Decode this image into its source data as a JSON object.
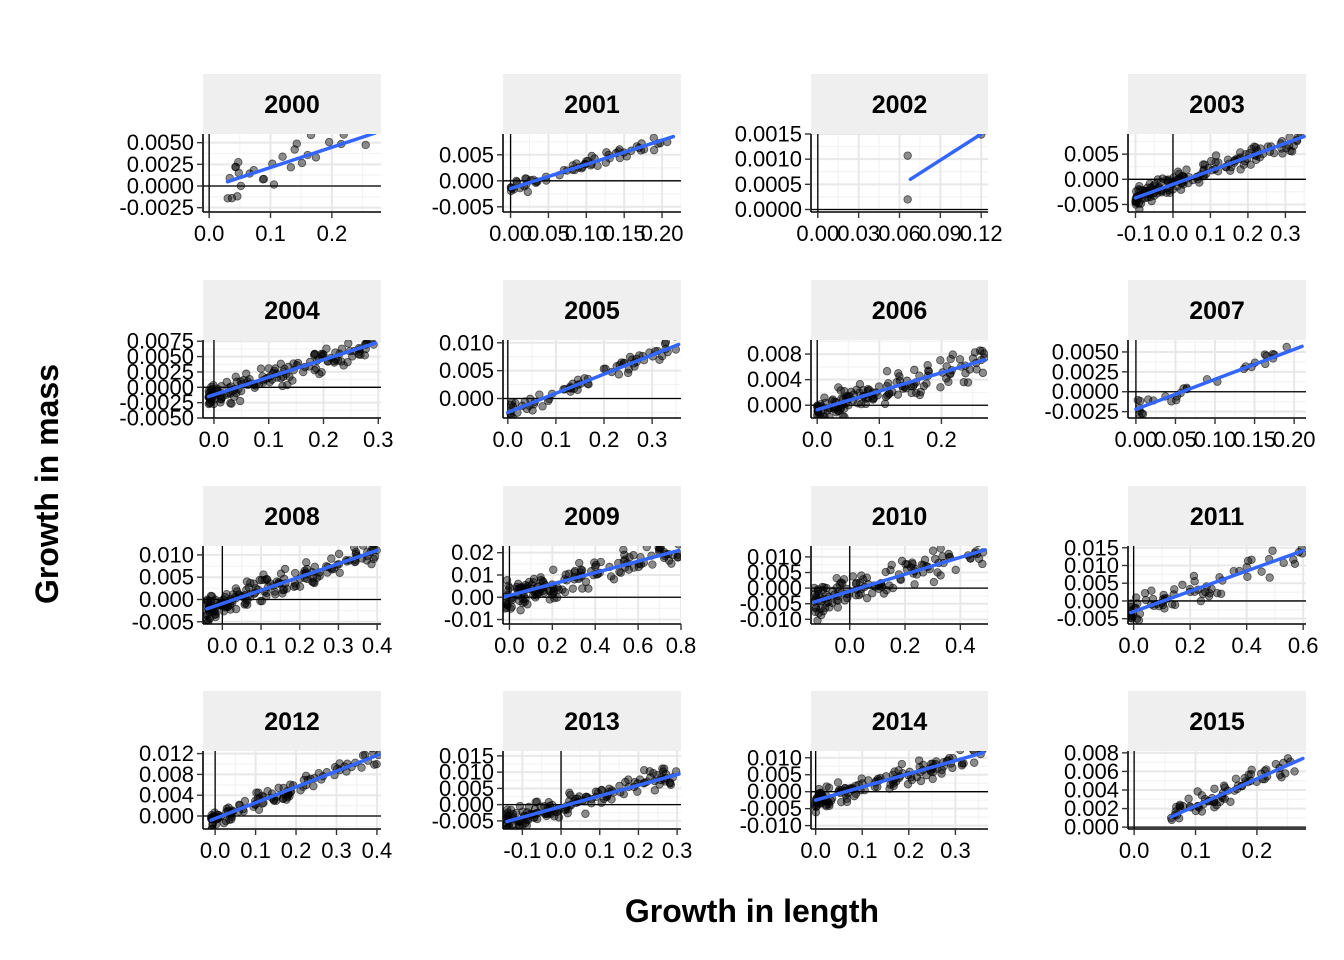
{
  "chart_data": {
    "type": "scatter",
    "xlabel": "Growth in length",
    "ylabel": "Growth in mass",
    "layout": "facet_wrap by year, 4 columns, free scales, points with linear fit line",
    "fit_color": "#3366ff",
    "panels": [
      {
        "year": "2000",
        "xlim": [
          -0.01,
          0.28
        ],
        "ylim": [
          -0.003,
          0.006
        ],
        "xticks": [
          {
            "v": 0,
            "label": "0.0"
          },
          {
            "v": 0.1,
            "label": "0.1"
          },
          {
            "v": 0.2,
            "label": "0.2"
          }
        ],
        "yticks": [
          {
            "v": -0.0025,
            "label": "-0.0025"
          },
          {
            "v": 0,
            "label": "0.0000"
          },
          {
            "v": 0.0025,
            "label": "0.0025"
          },
          {
            "v": 0.005,
            "label": "0.0050"
          }
        ],
        "n": 28,
        "fit": {
          "x": [
            0.03,
            0.27
          ],
          "y": [
            0.0005,
            0.0061
          ]
        },
        "noise": 0.0018
      },
      {
        "year": "2001",
        "xlim": [
          -0.01,
          0.225
        ],
        "ylim": [
          -0.006,
          0.009
        ],
        "xticks": [
          {
            "v": 0,
            "label": "0.00"
          },
          {
            "v": 0.05,
            "label": "0.05"
          },
          {
            "v": 0.1,
            "label": "0.10"
          },
          {
            "v": 0.15,
            "label": "0.15"
          },
          {
            "v": 0.2,
            "label": "0.20"
          }
        ],
        "yticks": [
          {
            "v": -0.005,
            "label": "-0.005"
          },
          {
            "v": 0,
            "label": "0.000"
          },
          {
            "v": 0.005,
            "label": "0.005"
          }
        ],
        "n": 60,
        "fit": {
          "x": [
            0.0,
            0.215
          ],
          "y": [
            -0.0015,
            0.0085
          ]
        },
        "noise": 0.0009
      },
      {
        "year": "2002",
        "xlim": [
          -0.005,
          0.125
        ],
        "ylim": [
          -5e-05,
          0.0015
        ],
        "xticks": [
          {
            "v": 0,
            "label": "0.00"
          },
          {
            "v": 0.03,
            "label": "0.03"
          },
          {
            "v": 0.06,
            "label": "0.06"
          },
          {
            "v": 0.09,
            "label": "0.09"
          },
          {
            "v": 0.12,
            "label": "0.12"
          }
        ],
        "yticks": [
          {
            "v": 0,
            "label": "0.0000"
          },
          {
            "v": 0.0005,
            "label": "0.0005"
          },
          {
            "v": 0.001,
            "label": "0.0010"
          },
          {
            "v": 0.0015,
            "label": "0.0015"
          }
        ],
        "points": [
          [
            0.066,
            0.00107
          ],
          [
            0.066,
            0.0002
          ],
          [
            0.12,
            0.00149
          ]
        ],
        "fit": {
          "x": [
            0.068,
            0.12
          ],
          "y": [
            0.0006,
            0.0015
          ]
        }
      },
      {
        "year": "2003",
        "xlim": [
          -0.12,
          0.355
        ],
        "ylim": [
          -0.0065,
          0.009
        ],
        "xticks": [
          {
            "v": -0.1,
            "label": "-0.1"
          },
          {
            "v": 0,
            "label": "0.0"
          },
          {
            "v": 0.1,
            "label": "0.1"
          },
          {
            "v": 0.2,
            "label": "0.2"
          },
          {
            "v": 0.3,
            "label": "0.3"
          }
        ],
        "yticks": [
          {
            "v": -0.005,
            "label": "-0.005"
          },
          {
            "v": 0,
            "label": "0.000"
          },
          {
            "v": 0.005,
            "label": "0.005"
          }
        ],
        "n": 150,
        "fit": {
          "x": [
            -0.1,
            0.35
          ],
          "y": [
            -0.0037,
            0.0085
          ]
        },
        "noise": 0.0015
      },
      {
        "year": "2004",
        "xlim": [
          -0.02,
          0.305
        ],
        "ylim": [
          -0.005,
          0.0077
        ],
        "xticks": [
          {
            "v": 0,
            "label": "0.0"
          },
          {
            "v": 0.1,
            "label": "0.1"
          },
          {
            "v": 0.2,
            "label": "0.2"
          },
          {
            "v": 0.3,
            "label": "0.3"
          }
        ],
        "yticks": [
          {
            "v": -0.005,
            "label": "-0.0050"
          },
          {
            "v": -0.0025,
            "label": "-0.0025"
          },
          {
            "v": 0,
            "label": "0.0000"
          },
          {
            "v": 0.0025,
            "label": "0.0025"
          },
          {
            "v": 0.005,
            "label": "0.0050"
          },
          {
            "v": 0.0075,
            "label": "0.0075"
          }
        ],
        "n": 140,
        "fit": {
          "x": [
            -0.01,
            0.295
          ],
          "y": [
            -0.0015,
            0.0072
          ]
        },
        "noise": 0.0014
      },
      {
        "year": "2005",
        "xlim": [
          -0.01,
          0.36
        ],
        "ylim": [
          -0.0035,
          0.0105
        ],
        "xticks": [
          {
            "v": 0,
            "label": "0.0"
          },
          {
            "v": 0.1,
            "label": "0.1"
          },
          {
            "v": 0.2,
            "label": "0.2"
          },
          {
            "v": 0.3,
            "label": "0.3"
          }
        ],
        "yticks": [
          {
            "v": 0,
            "label": "0.000"
          },
          {
            "v": 0.005,
            "label": "0.005"
          },
          {
            "v": 0.01,
            "label": "0.010"
          }
        ],
        "n": 70,
        "fit": {
          "x": [
            0.0,
            0.355
          ],
          "y": [
            -0.0025,
            0.0097
          ]
        },
        "noise": 0.0012
      },
      {
        "year": "2006",
        "xlim": [
          -0.01,
          0.275
        ],
        "ylim": [
          -0.002,
          0.0102
        ],
        "xticks": [
          {
            "v": 0,
            "label": "0.0"
          },
          {
            "v": 0.1,
            "label": "0.1"
          },
          {
            "v": 0.2,
            "label": "0.2"
          }
        ],
        "yticks": [
          {
            "v": 0,
            "label": "0.000"
          },
          {
            "v": 0.004,
            "label": "0.004"
          },
          {
            "v": 0.008,
            "label": "0.008"
          }
        ],
        "n": 140,
        "fit": {
          "x": [
            0.0,
            0.27
          ],
          "y": [
            -0.0007,
            0.0071
          ]
        },
        "noise": 0.0017
      },
      {
        "year": "2007",
        "xlim": [
          -0.01,
          0.215
        ],
        "ylim": [
          -0.0033,
          0.0065
        ],
        "xticks": [
          {
            "v": 0,
            "label": "0.00"
          },
          {
            "v": 0.05,
            "label": "0.05"
          },
          {
            "v": 0.1,
            "label": "0.10"
          },
          {
            "v": 0.15,
            "label": "0.15"
          },
          {
            "v": 0.2,
            "label": "0.20"
          }
        ],
        "yticks": [
          {
            "v": -0.0025,
            "label": "-0.0025"
          },
          {
            "v": 0,
            "label": "0.0000"
          },
          {
            "v": 0.0025,
            "label": "0.0025"
          },
          {
            "v": 0.005,
            "label": "0.0050"
          }
        ],
        "n": 30,
        "fit": {
          "x": [
            0.0,
            0.21
          ],
          "y": [
            -0.0022,
            0.0057
          ]
        },
        "noise": 0.0009
      },
      {
        "year": "2008",
        "xlim": [
          -0.05,
          0.41
        ],
        "ylim": [
          -0.0055,
          0.012
        ],
        "xticks": [
          {
            "v": 0,
            "label": "0.0"
          },
          {
            "v": 0.1,
            "label": "0.1"
          },
          {
            "v": 0.2,
            "label": "0.2"
          },
          {
            "v": 0.3,
            "label": "0.3"
          },
          {
            "v": 0.4,
            "label": "0.4"
          }
        ],
        "yticks": [
          {
            "v": -0.005,
            "label": "-0.005"
          },
          {
            "v": 0,
            "label": "0.000"
          },
          {
            "v": 0.005,
            "label": "0.005"
          },
          {
            "v": 0.01,
            "label": "0.010"
          }
        ],
        "n": 170,
        "fit": {
          "x": [
            -0.04,
            0.4
          ],
          "y": [
            -0.0021,
            0.011
          ]
        },
        "noise": 0.0019
      },
      {
        "year": "2009",
        "xlim": [
          -0.03,
          0.8
        ],
        "ylim": [
          -0.012,
          0.023
        ],
        "xticks": [
          {
            "v": 0,
            "label": "0.0"
          },
          {
            "v": 0.2,
            "label": "0.2"
          },
          {
            "v": 0.4,
            "label": "0.4"
          },
          {
            "v": 0.6,
            "label": "0.6"
          },
          {
            "v": 0.8,
            "label": "0.8"
          }
        ],
        "yticks": [
          {
            "v": -0.01,
            "label": "-0.01"
          },
          {
            "v": 0,
            "label": "0.00"
          },
          {
            "v": 0.01,
            "label": "0.01"
          },
          {
            "v": 0.02,
            "label": "0.02"
          }
        ],
        "n": 150,
        "fit": {
          "x": [
            -0.02,
            0.79
          ],
          "y": [
            0.0003,
            0.021
          ]
        },
        "noise": 0.0045
      },
      {
        "year": "2010",
        "xlim": [
          -0.14,
          0.5
        ],
        "ylim": [
          -0.0115,
          0.0135
        ],
        "xticks": [
          {
            "v": 0,
            "label": "0.0"
          },
          {
            "v": 0.2,
            "label": "0.2"
          },
          {
            "v": 0.4,
            "label": "0.4"
          }
        ],
        "yticks": [
          {
            "v": -0.01,
            "label": "-0.010"
          },
          {
            "v": -0.005,
            "label": "-0.005"
          },
          {
            "v": 0,
            "label": "0.000"
          },
          {
            "v": 0.005,
            "label": "0.005"
          },
          {
            "v": 0.01,
            "label": "0.010"
          }
        ],
        "n": 130,
        "fit": {
          "x": [
            -0.13,
            0.49
          ],
          "y": [
            -0.0045,
            0.0123
          ]
        },
        "noise": 0.0032
      },
      {
        "year": "2011",
        "xlim": [
          -0.02,
          0.61
        ],
        "ylim": [
          -0.0065,
          0.0155
        ],
        "xticks": [
          {
            "v": 0,
            "label": "0.0"
          },
          {
            "v": 0.2,
            "label": "0.2"
          },
          {
            "v": 0.4,
            "label": "0.4"
          },
          {
            "v": 0.6,
            "label": "0.6"
          }
        ],
        "yticks": [
          {
            "v": -0.005,
            "label": "-0.005"
          },
          {
            "v": 0,
            "label": "0.000"
          },
          {
            "v": 0.005,
            "label": "0.005"
          },
          {
            "v": 0.01,
            "label": "0.010"
          },
          {
            "v": 0.015,
            "label": "0.015"
          }
        ],
        "n": 70,
        "fit": {
          "x": [
            -0.01,
            0.6
          ],
          "y": [
            -0.0033,
            0.0142
          ]
        },
        "noise": 0.0028
      },
      {
        "year": "2012",
        "xlim": [
          -0.03,
          0.41
        ],
        "ylim": [
          -0.0025,
          0.0125
        ],
        "xticks": [
          {
            "v": 0,
            "label": "0.0"
          },
          {
            "v": 0.1,
            "label": "0.1"
          },
          {
            "v": 0.2,
            "label": "0.2"
          },
          {
            "v": 0.3,
            "label": "0.3"
          },
          {
            "v": 0.4,
            "label": "0.4"
          }
        ],
        "yticks": [
          {
            "v": 0,
            "label": "0.000"
          },
          {
            "v": 0.004,
            "label": "0.004"
          },
          {
            "v": 0.008,
            "label": "0.008"
          },
          {
            "v": 0.012,
            "label": "0.012"
          }
        ],
        "n": 110,
        "fit": {
          "x": [
            -0.01,
            0.405
          ],
          "y": [
            -0.0008,
            0.0118
          ]
        },
        "noise": 0.0011
      },
      {
        "year": "2013",
        "xlim": [
          -0.15,
          0.31
        ],
        "ylim": [
          -0.0075,
          0.0165
        ],
        "xticks": [
          {
            "v": -0.1,
            "label": "-0.1"
          },
          {
            "v": 0,
            "label": "0.0"
          },
          {
            "v": 0.1,
            "label": "0.1"
          },
          {
            "v": 0.2,
            "label": "0.2"
          },
          {
            "v": 0.3,
            "label": "0.3"
          }
        ],
        "yticks": [
          {
            "v": -0.005,
            "label": "-0.005"
          },
          {
            "v": 0,
            "label": "0.000"
          },
          {
            "v": 0.005,
            "label": "0.005"
          },
          {
            "v": 0.01,
            "label": "0.010"
          },
          {
            "v": 0.015,
            "label": "0.015"
          }
        ],
        "n": 150,
        "fit": {
          "x": [
            -0.14,
            0.305
          ],
          "y": [
            -0.0052,
            0.0094
          ]
        },
        "noise": 0.0024
      },
      {
        "year": "2014",
        "xlim": [
          -0.01,
          0.37
        ],
        "ylim": [
          -0.011,
          0.012
        ],
        "xticks": [
          {
            "v": 0,
            "label": "0.0"
          },
          {
            "v": 0.1,
            "label": "0.1"
          },
          {
            "v": 0.2,
            "label": "0.2"
          },
          {
            "v": 0.3,
            "label": "0.3"
          }
        ],
        "yticks": [
          {
            "v": -0.01,
            "label": "-0.010"
          },
          {
            "v": -0.005,
            "label": "-0.005"
          },
          {
            "v": 0,
            "label": "0.000"
          },
          {
            "v": 0.005,
            "label": "0.005"
          },
          {
            "v": 0.01,
            "label": "0.010"
          }
        ],
        "n": 130,
        "fit": {
          "x": [
            0.0,
            0.36
          ],
          "y": [
            -0.0025,
            0.0115
          ]
        },
        "noise": 0.0022
      },
      {
        "year": "2015",
        "xlim": [
          -0.01,
          0.28
        ],
        "ylim": [
          -0.0002,
          0.0082
        ],
        "xticks": [
          {
            "v": 0,
            "label": "0.0"
          },
          {
            "v": 0.1,
            "label": "0.1"
          },
          {
            "v": 0.2,
            "label": "0.2"
          }
        ],
        "yticks": [
          {
            "v": 0,
            "label": "0.000"
          },
          {
            "v": 0.002,
            "label": "0.002"
          },
          {
            "v": 0.004,
            "label": "0.004"
          },
          {
            "v": 0.006,
            "label": "0.006"
          },
          {
            "v": 0.008,
            "label": "0.008"
          }
        ],
        "n": 70,
        "fit": {
          "x": [
            0.06,
            0.275
          ],
          "y": [
            0.0011,
            0.0074
          ]
        },
        "noise": 0.0008
      }
    ]
  }
}
